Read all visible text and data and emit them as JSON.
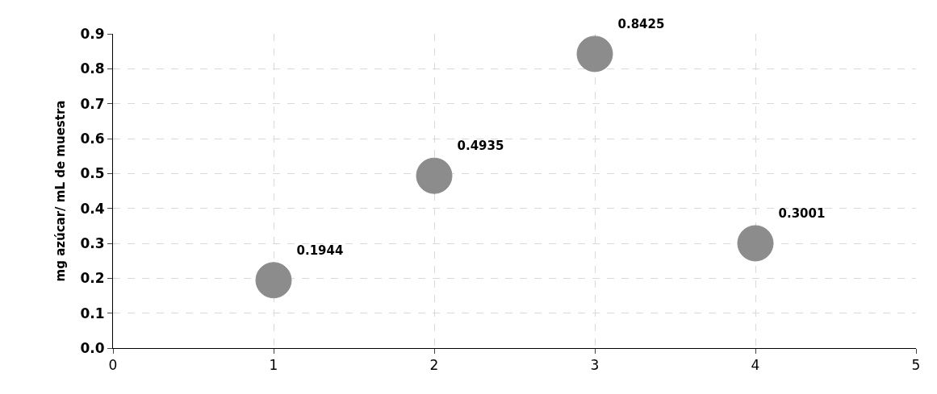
{
  "chart_data": {
    "type": "scatter",
    "ylabel": "mg azúcar/ mL de muestra",
    "x": [
      1,
      2,
      3,
      4
    ],
    "series": [
      {
        "color": "#8c8c8c",
        "values": [
          0.1944,
          0.4935,
          0.8425,
          0.3001
        ]
      }
    ],
    "data_labels": true,
    "xlim": [
      0,
      5
    ],
    "xticks": [
      0,
      1,
      2,
      3,
      4,
      5
    ],
    "ylim": [
      0,
      0.9
    ],
    "yticks": [
      {
        "value": 0,
        "label": "0.0"
      },
      0.1,
      0.2,
      0.3,
      0.4,
      0.5,
      0.6,
      0.7,
      0.8,
      0.9
    ],
    "grid": true,
    "legend": false,
    "marker": "circle"
  }
}
